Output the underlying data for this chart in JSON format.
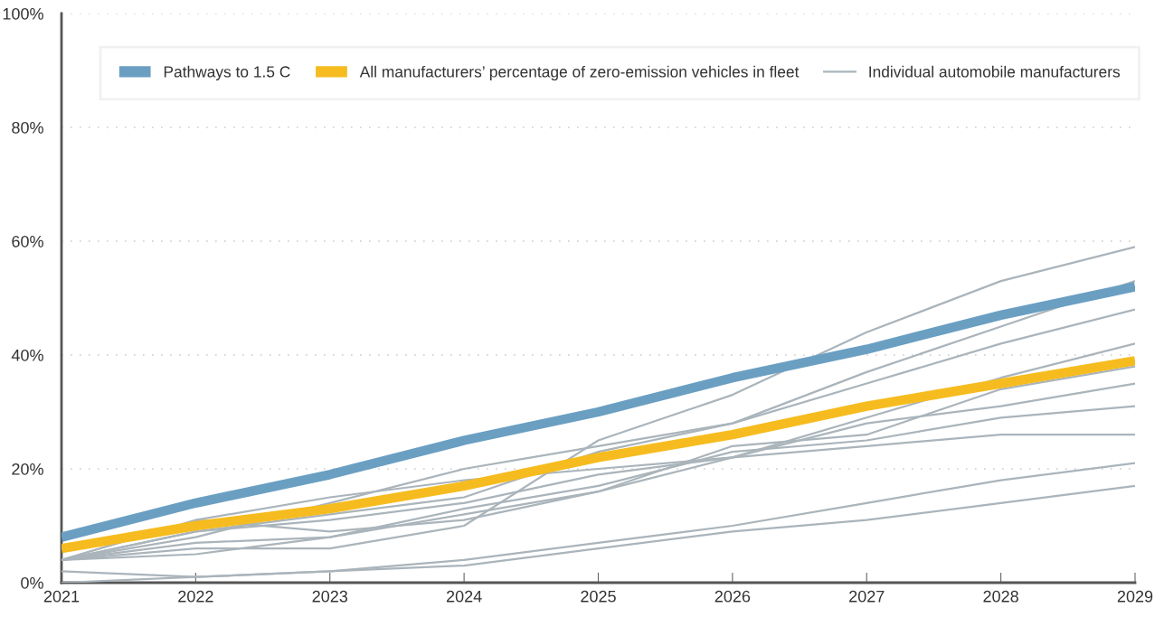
{
  "chart_data": {
    "type": "line",
    "x": [
      2021,
      2022,
      2023,
      2024,
      2025,
      2026,
      2027,
      2028,
      2029
    ],
    "xlim": [
      2021,
      2029
    ],
    "xticks": [
      2021,
      2022,
      2023,
      2024,
      2025,
      2026,
      2027,
      2028,
      2029
    ],
    "ylim": [
      0,
      100
    ],
    "yticks": [
      {
        "value": 0,
        "label": "0%"
      },
      {
        "value": 20,
        "label": "20%"
      },
      {
        "value": 40,
        "label": "40%"
      },
      {
        "value": 60,
        "label": "60%"
      },
      {
        "value": 80,
        "label": "80%"
      },
      {
        "value": 100,
        "label": "100%"
      }
    ],
    "grid": "y",
    "legend": "top",
    "marker": "none",
    "line_style": "solid",
    "series": [
      {
        "name": "Pathways to 1.5 C",
        "color": "#6a9fc2",
        "values": [
          8,
          14,
          19,
          25,
          30,
          36,
          41,
          47,
          52
        ]
      },
      {
        "name": "All manufacturers’ percentage of zero-emission vehicles in fleet",
        "color": "#f6bc1f",
        "values": [
          6,
          10,
          13,
          17,
          22,
          26,
          31,
          35,
          39
        ]
      },
      {
        "name": "Individual automobile manufacturers",
        "color": "#aab4bb",
        "values": [
          4,
          6,
          6,
          10,
          25,
          33,
          44,
          53,
          59
        ]
      },
      {
        "color": "#aab4bb",
        "values": [
          4,
          8,
          14,
          20,
          24,
          28,
          37,
          45,
          53
        ]
      },
      {
        "color": "#aab4bb",
        "values": [
          4,
          9,
          12,
          15,
          23,
          28,
          35,
          42,
          48
        ]
      },
      {
        "color": "#aab4bb",
        "values": [
          4,
          11,
          15,
          18,
          20,
          22,
          29,
          36,
          42
        ]
      },
      {
        "color": "#aab4bb",
        "values": [
          4,
          7,
          8,
          12,
          16,
          24,
          26,
          34,
          38
        ]
      },
      {
        "color": "#aab4bb",
        "values": [
          4,
          9,
          11,
          14,
          19,
          22,
          28,
          31,
          35
        ]
      },
      {
        "color": "#aab4bb",
        "values": [
          4,
          5,
          8,
          13,
          17,
          23,
          25,
          29,
          31
        ]
      },
      {
        "color": "#aab4bb",
        "values": [
          4,
          11,
          9,
          11,
          16,
          22,
          24,
          26,
          26
        ]
      },
      {
        "color": "#aab4bb",
        "values": [
          2,
          1,
          2,
          4,
          7,
          10,
          14,
          18,
          21
        ]
      },
      {
        "color": "#aab4bb",
        "values": [
          0,
          1,
          2,
          3,
          6,
          9,
          11,
          14,
          17
        ]
      }
    ]
  }
}
